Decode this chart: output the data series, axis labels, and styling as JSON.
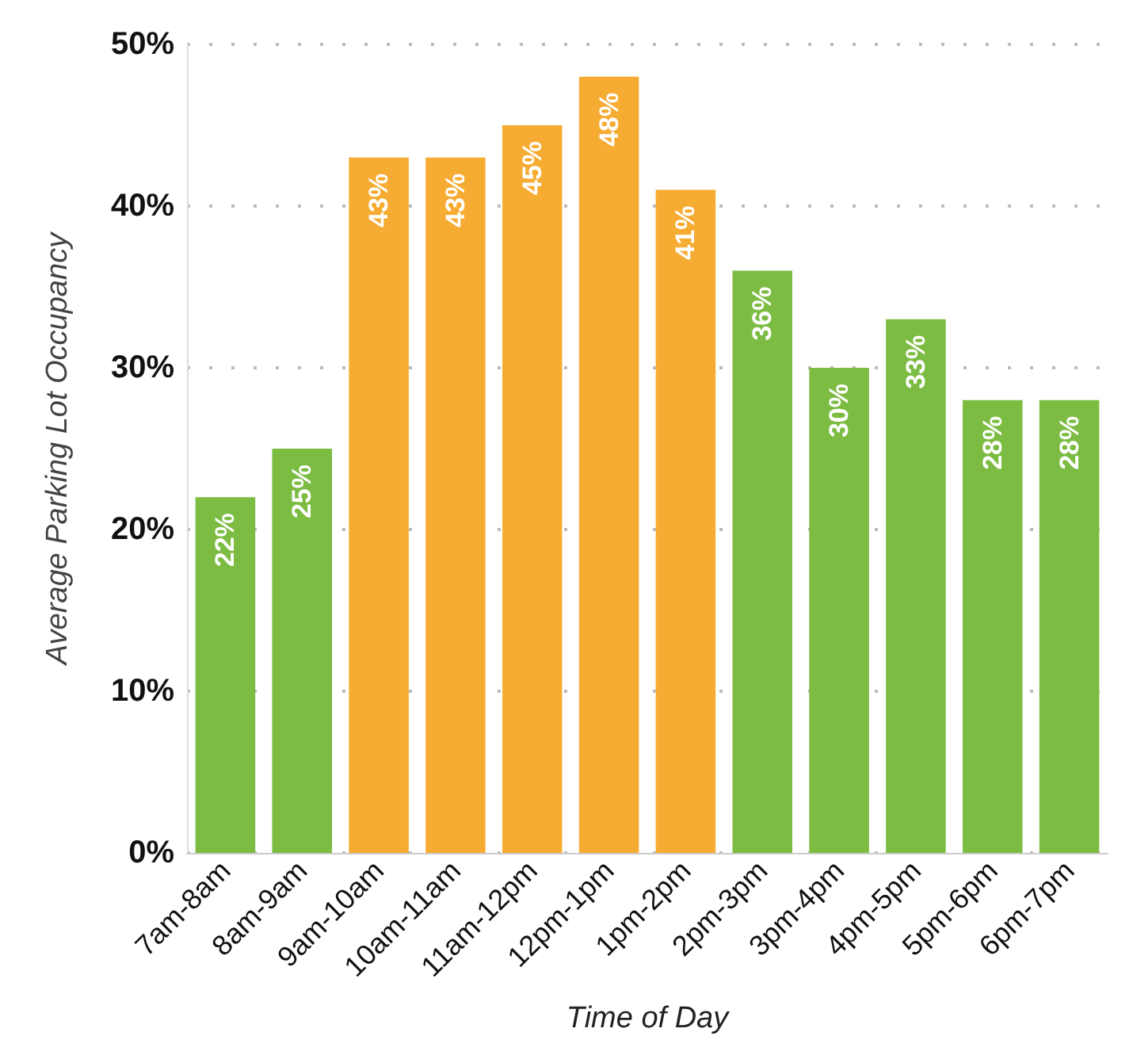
{
  "chart_data": {
    "type": "bar",
    "xlabel": "Time of Day",
    "ylabel": "Average Parking Lot Occupancy",
    "categories": [
      "7am-8am",
      "8am-9am",
      "9am-10am",
      "10am-11am",
      "11am-12pm",
      "12pm-1pm",
      "1pm-2pm",
      "2pm-3pm",
      "3pm-4pm",
      "4pm-5pm",
      "5pm-6pm",
      "6pm-7pm"
    ],
    "values": [
      22,
      25,
      43,
      43,
      45,
      48,
      41,
      36,
      30,
      33,
      28,
      28
    ],
    "value_labels": [
      "22%",
      "25%",
      "43%",
      "43%",
      "45%",
      "48%",
      "41%",
      "36%",
      "30%",
      "33%",
      "28%",
      "28%"
    ],
    "colors": [
      "#7cbc42",
      "#7cbc42",
      "#f6ac32",
      "#f6ac32",
      "#f6ac32",
      "#f6ac32",
      "#f6ac32",
      "#7cbc42",
      "#7cbc42",
      "#7cbc42",
      "#7cbc42",
      "#7cbc42"
    ],
    "ylim": [
      0,
      50
    ],
    "yticks": [
      {
        "value": 0,
        "label": "0%"
      },
      {
        "value": 10,
        "label": "10%"
      },
      {
        "value": 20,
        "label": "20%"
      },
      {
        "value": 30,
        "label": "30%"
      },
      {
        "value": 40,
        "label": "40%"
      },
      {
        "value": 50,
        "label": "50%"
      }
    ],
    "grid": "y"
  }
}
